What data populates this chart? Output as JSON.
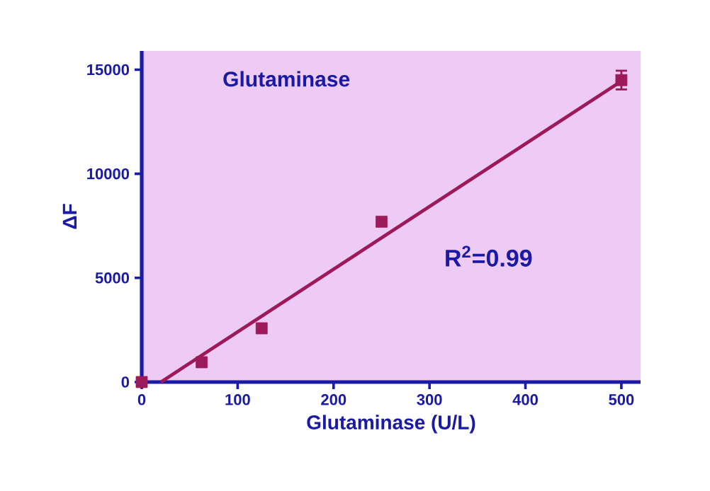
{
  "chart_data": {
    "type": "scatter",
    "title": "Glutaminase",
    "xlabel": "Glutaminase (U/L)",
    "ylabel": "ΔF",
    "annotations": [
      "R$^{2}$=0.99"
    ],
    "xlim": [
      0,
      520
    ],
    "ylim": [
      0,
      15900
    ],
    "xticks": [
      0,
      100,
      200,
      300,
      400,
      500
    ],
    "yticks": [
      0,
      5000,
      10000,
      15000
    ],
    "grid": false,
    "series": [
      {
        "marker": "square",
        "color": "#9c1a5a",
        "x": [
          0,
          62.5,
          125,
          250,
          500
        ],
        "values": [
          0,
          950,
          2580,
          7700,
          14500
        ],
        "errors": [
          null,
          null,
          null,
          null,
          450
        ]
      },
      {
        "type": "line",
        "color": "#9c1a5a",
        "x": [
          20,
          500
        ],
        "values": [
          0,
          14450
        ]
      }
    ]
  }
}
